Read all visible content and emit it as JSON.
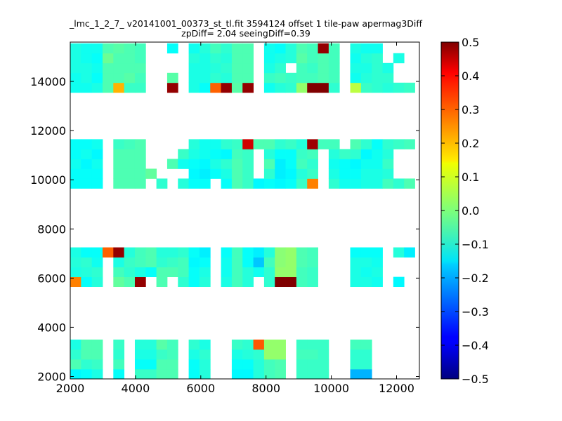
{
  "chart_data": {
    "type": "heatmap",
    "title_line1": "_lmc_1_2_7_ v20141001_00373_st_tl.fit 3594124 offset 1 tile-paw apermag3Diff",
    "title_line2": "zpDiff= 2.04 seeingDiff=0.39",
    "xlabel": "",
    "ylabel": "",
    "xlim": [
      2000,
      12700
    ],
    "ylim": [
      1900,
      15600
    ],
    "x_ticks": [
      2000,
      4000,
      6000,
      8000,
      10000,
      12000
    ],
    "y_ticks": [
      2000,
      4000,
      6000,
      8000,
      10000,
      12000,
      14000
    ],
    "x_tick_labels": [
      "2000",
      "4000",
      "6000",
      "8000",
      "10000",
      "12000"
    ],
    "y_tick_labels": [
      "2000",
      "4000",
      "6000",
      "8000",
      "10000",
      "12000",
      "14000"
    ],
    "colormap": "jet",
    "clim": [
      -0.5,
      0.5
    ],
    "colorbar_ticks": [
      0.5,
      0.4,
      0.3,
      0.2,
      0.1,
      0.0,
      -0.1,
      -0.2,
      -0.3,
      -0.4,
      -0.5
    ],
    "colorbar_tick_labels": [
      "0.5",
      "0.4",
      "0.3",
      "0.2",
      "0.1",
      "0.0",
      "−0.1",
      "−0.2",
      "−0.3",
      "−0.4",
      "−0.5"
    ],
    "grid": false,
    "cell_size": [
      330,
      400
    ],
    "x_start": 2000,
    "y_bands": [
      {
        "y0": 1900,
        "values": [
          [
            -0.13,
            -0.12,
            -0.1,
            null,
            -0.12,
            null,
            -0.07,
            -0.07,
            -0.05,
            -0.05,
            null,
            -0.12,
            -0.09,
            null,
            null,
            -0.13,
            -0.13,
            -0.09,
            -0.06,
            -0.05,
            null,
            -0.07,
            -0.07,
            -0.07,
            null,
            null,
            -0.2,
            -0.2,
            null,
            null,
            null,
            null
          ],
          [
            -0.05,
            -0.08,
            -0.07,
            null,
            -0.06,
            null,
            -0.12,
            -0.12,
            -0.05,
            -0.05,
            null,
            -0.12,
            -0.09,
            null,
            null,
            -0.12,
            -0.12,
            -0.09,
            -0.06,
            -0.05,
            null,
            -0.07,
            -0.07,
            -0.07,
            null,
            null,
            -0.08,
            -0.08,
            null,
            null,
            null,
            null
          ],
          [
            -0.08,
            -0.05,
            -0.05,
            null,
            -0.08,
            null,
            -0.1,
            -0.1,
            -0.07,
            -0.06,
            null,
            -0.1,
            -0.08,
            null,
            null,
            -0.1,
            -0.09,
            -0.08,
            0.02,
            0.02,
            null,
            -0.06,
            -0.06,
            -0.07,
            null,
            null,
            -0.08,
            -0.08,
            null,
            null,
            null,
            null
          ],
          [
            -0.1,
            -0.05,
            -0.05,
            null,
            -0.07,
            null,
            -0.09,
            -0.09,
            -0.04,
            -0.06,
            null,
            -0.08,
            -0.1,
            null,
            null,
            -0.07,
            -0.08,
            0.29,
            0.02,
            0.02,
            null,
            -0.07,
            -0.07,
            -0.07,
            null,
            null,
            -0.06,
            -0.06,
            null,
            null,
            null,
            null
          ]
        ]
      },
      {
        "y0": 5650,
        "values": [
          [
            0.25,
            -0.12,
            -0.09,
            null,
            -0.03,
            -0.05,
            0.48,
            null,
            -0.05,
            null,
            -0.08,
            -0.12,
            -0.09,
            null,
            -0.1,
            -0.06,
            -0.09,
            null,
            -0.08,
            0.5,
            0.5,
            -0.06,
            -0.07,
            null,
            null,
            null,
            -0.1,
            -0.1,
            -0.11,
            null,
            -0.13,
            null
          ],
          [
            -0.1,
            -0.09,
            -0.08,
            null,
            -0.06,
            -0.08,
            -0.1,
            -0.12,
            -0.05,
            -0.05,
            -0.06,
            -0.12,
            -0.1,
            null,
            -0.11,
            -0.06,
            -0.09,
            -0.11,
            -0.08,
            0.02,
            0.02,
            -0.06,
            -0.07,
            null,
            null,
            null,
            -0.1,
            -0.11,
            -0.1,
            null,
            null,
            null
          ],
          [
            -0.09,
            -0.08,
            -0.11,
            null,
            -0.1,
            -0.07,
            -0.06,
            -0.05,
            -0.08,
            -0.07,
            -0.06,
            -0.13,
            -0.12,
            null,
            -0.11,
            -0.06,
            -0.12,
            -0.18,
            -0.06,
            0.01,
            0.02,
            -0.05,
            -0.06,
            null,
            null,
            null,
            -0.1,
            -0.1,
            -0.11,
            null,
            null,
            null
          ],
          [
            -0.1,
            -0.12,
            -0.12,
            0.28,
            0.48,
            -0.09,
            -0.06,
            -0.05,
            -0.09,
            -0.09,
            -0.08,
            -0.12,
            -0.14,
            null,
            -0.12,
            -0.06,
            -0.12,
            -0.14,
            -0.09,
            0.01,
            0.02,
            -0.05,
            -0.06,
            null,
            null,
            null,
            -0.12,
            -0.12,
            -0.12,
            null,
            -0.09,
            -0.14
          ]
        ]
      },
      {
        "y0": 9650,
        "values": [
          [
            -0.12,
            -0.12,
            -0.12,
            null,
            -0.05,
            -0.05,
            -0.05,
            null,
            -0.08,
            null,
            -0.09,
            -0.12,
            -0.12,
            null,
            -0.12,
            -0.05,
            -0.07,
            -0.13,
            -0.12,
            -0.13,
            -0.12,
            -0.07,
            0.25,
            null,
            -0.08,
            -0.11,
            -0.11,
            -0.1,
            -0.1,
            -0.06,
            -0.08,
            -0.05
          ],
          [
            -0.12,
            -0.12,
            -0.12,
            null,
            -0.05,
            -0.05,
            -0.05,
            -0.03,
            null,
            null,
            null,
            -0.13,
            -0.14,
            -0.12,
            -0.1,
            -0.05,
            -0.07,
            null,
            -0.08,
            -0.14,
            -0.13,
            -0.09,
            -0.07,
            null,
            -0.1,
            -0.12,
            -0.12,
            -0.1,
            -0.1,
            -0.09,
            null,
            null
          ],
          [
            -0.11,
            -0.13,
            -0.11,
            null,
            -0.05,
            -0.05,
            -0.05,
            null,
            null,
            -0.05,
            -0.11,
            -0.12,
            -0.13,
            -0.1,
            -0.08,
            -0.05,
            -0.07,
            null,
            -0.05,
            -0.14,
            -0.12,
            -0.06,
            -0.08,
            null,
            -0.11,
            -0.12,
            -0.13,
            -0.11,
            -0.11,
            -0.07,
            null,
            null
          ],
          [
            -0.12,
            -0.11,
            -0.13,
            null,
            -0.05,
            -0.05,
            -0.05,
            null,
            null,
            null,
            -0.07,
            -0.1,
            -0.11,
            -0.12,
            -0.13,
            -0.06,
            -0.07,
            null,
            -0.09,
            -0.12,
            -0.12,
            -0.07,
            -0.06,
            null,
            -0.09,
            -0.07,
            -0.08,
            -0.13,
            -0.11,
            -0.09,
            null,
            null
          ],
          [
            -0.12,
            -0.12,
            -0.11,
            null,
            -0.07,
            -0.06,
            -0.05,
            null,
            null,
            null,
            null,
            -0.09,
            -0.11,
            -0.11,
            -0.08,
            -0.07,
            0.42,
            -0.05,
            -0.05,
            -0.08,
            -0.07,
            -0.09,
            0.47,
            -0.06,
            -0.06,
            null,
            -0.05,
            -0.08,
            -0.12,
            -0.08,
            -0.07,
            -0.06
          ]
        ]
      },
      {
        "y0": 13550,
        "values": [
          [
            -0.11,
            -0.11,
            -0.1,
            -0.05,
            0.2,
            -0.07,
            -0.07,
            null,
            null,
            0.48,
            null,
            -0.1,
            -0.12,
            0.28,
            0.48,
            -0.04,
            0.48,
            null,
            -0.11,
            -0.09,
            -0.08,
            0.02,
            0.5,
            0.5,
            -0.08,
            null,
            0.06,
            -0.07,
            -0.08,
            -0.09,
            -0.08,
            -0.07
          ],
          [
            -0.11,
            -0.1,
            -0.12,
            -0.05,
            -0.05,
            -0.04,
            -0.06,
            null,
            null,
            -0.04,
            null,
            -0.1,
            -0.1,
            -0.08,
            -0.09,
            -0.05,
            -0.05,
            null,
            -0.07,
            -0.06,
            -0.07,
            -0.06,
            -0.06,
            -0.05,
            -0.06,
            null,
            -0.11,
            -0.09,
            -0.08,
            -0.08,
            null,
            null
          ],
          [
            -0.1,
            -0.1,
            -0.11,
            -0.05,
            -0.05,
            -0.05,
            -0.05,
            null,
            null,
            null,
            null,
            -0.1,
            -0.1,
            -0.09,
            -0.08,
            -0.05,
            -0.05,
            null,
            -0.1,
            -0.08,
            null,
            -0.06,
            -0.07,
            -0.05,
            -0.06,
            null,
            -0.1,
            -0.1,
            -0.08,
            -0.1,
            null,
            null
          ],
          [
            -0.1,
            -0.11,
            -0.12,
            -0.02,
            -0.05,
            -0.05,
            -0.06,
            null,
            null,
            null,
            null,
            -0.09,
            -0.1,
            -0.08,
            -0.09,
            -0.05,
            -0.05,
            null,
            -0.11,
            -0.1,
            -0.09,
            -0.04,
            -0.06,
            -0.05,
            -0.06,
            null,
            -0.11,
            -0.09,
            -0.08,
            null,
            -0.1,
            null
          ],
          [
            -0.1,
            -0.11,
            -0.11,
            -0.05,
            -0.04,
            -0.05,
            -0.06,
            null,
            null,
            -0.12,
            null,
            -0.11,
            -0.09,
            -0.06,
            -0.08,
            -0.05,
            -0.05,
            null,
            -0.11,
            -0.12,
            -0.09,
            -0.05,
            -0.06,
            0.48,
            -0.06,
            null,
            -0.1,
            -0.11,
            -0.11,
            null,
            null,
            null
          ]
        ]
      }
    ]
  }
}
